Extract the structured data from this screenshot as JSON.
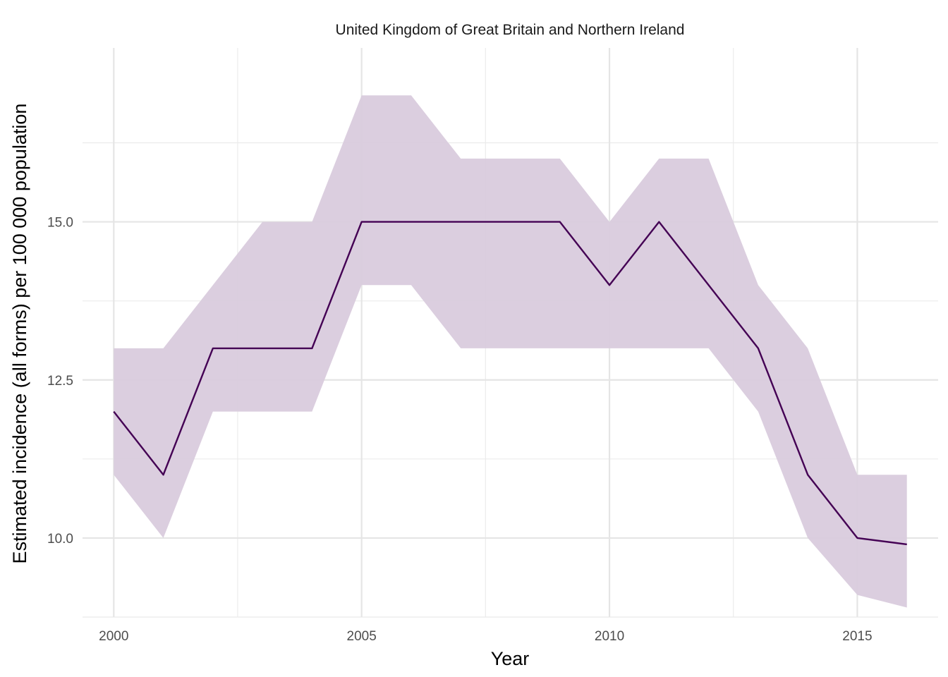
{
  "chart_data": {
    "type": "line",
    "title": "United Kingdom of Great Britain and Northern Ireland",
    "xlabel": "Year",
    "ylabel": "Estimated incidence (all forms) per 100 000 population",
    "x": [
      2000,
      2001,
      2002,
      2003,
      2004,
      2005,
      2006,
      2007,
      2008,
      2009,
      2010,
      2011,
      2012,
      2013,
      2014,
      2015,
      2016
    ],
    "series": [
      {
        "values": [
          12,
          11,
          13,
          13,
          13,
          15,
          15,
          15,
          15,
          15,
          14,
          15,
          14,
          13,
          11,
          10,
          9.9
        ],
        "lower": [
          11,
          10,
          12,
          12,
          12,
          14,
          14,
          13,
          13,
          13,
          13,
          13,
          13,
          12,
          10,
          9.1,
          8.9
        ],
        "upper": [
          13,
          13,
          14,
          15,
          15,
          17,
          17,
          16,
          16,
          16,
          15,
          16,
          16,
          14,
          13,
          11,
          11
        ],
        "line_color": "#440154",
        "band_color": "#d9cbdd"
      }
    ],
    "xticks": [
      2000,
      2005,
      2010,
      2015
    ],
    "xtick_labels": [
      "2000",
      "2005",
      "2010",
      "2015"
    ],
    "yticks": [
      10,
      12.5,
      15
    ],
    "ytick_labels": [
      "10.0",
      "12.5",
      "15.0"
    ],
    "xlim": [
      1999.37,
      2016.63
    ],
    "ylim": [
      8.75,
      17.75
    ],
    "grid": true,
    "legend": "none"
  }
}
